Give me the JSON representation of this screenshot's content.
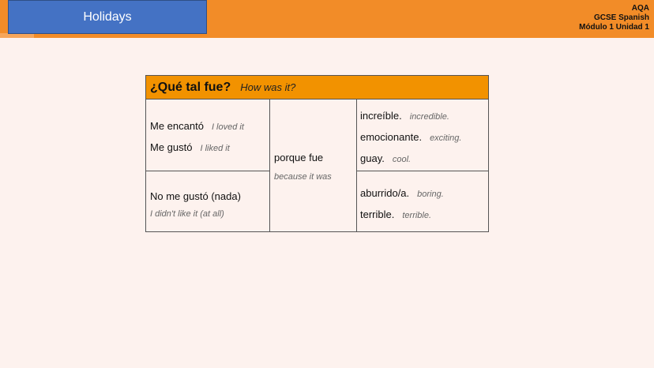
{
  "header": {
    "title": "Holidays",
    "course": [
      "AQA",
      "GCSE Spanish",
      "Módulo 1 Unidad 1"
    ]
  },
  "table": {
    "question": "¿Qué tal fue?",
    "question_en": "How was it?",
    "opinions_pos": [
      {
        "es": "Me encantó",
        "en": "I loved it"
      },
      {
        "es": "Me gustó",
        "en": "I liked it"
      }
    ],
    "opinion_neg": {
      "es": "No me gustó (nada)",
      "en": "I didn't like it (at all)"
    },
    "connector": {
      "es": "porque fue",
      "en": "because it was"
    },
    "adj_pos": [
      {
        "es": "increíble.",
        "en": "incredible."
      },
      {
        "es": "emocionante.",
        "en": "exciting."
      },
      {
        "es": "guay.",
        "en": "cool."
      }
    ],
    "adj_neg": [
      {
        "es": "aburrido/a.",
        "en": "boring."
      },
      {
        "es": "terrible.",
        "en": "terrible."
      }
    ]
  },
  "colors": {
    "header_bar": "#f28c28",
    "title_box": "#4472c4",
    "table_header": "#f29200"
  }
}
